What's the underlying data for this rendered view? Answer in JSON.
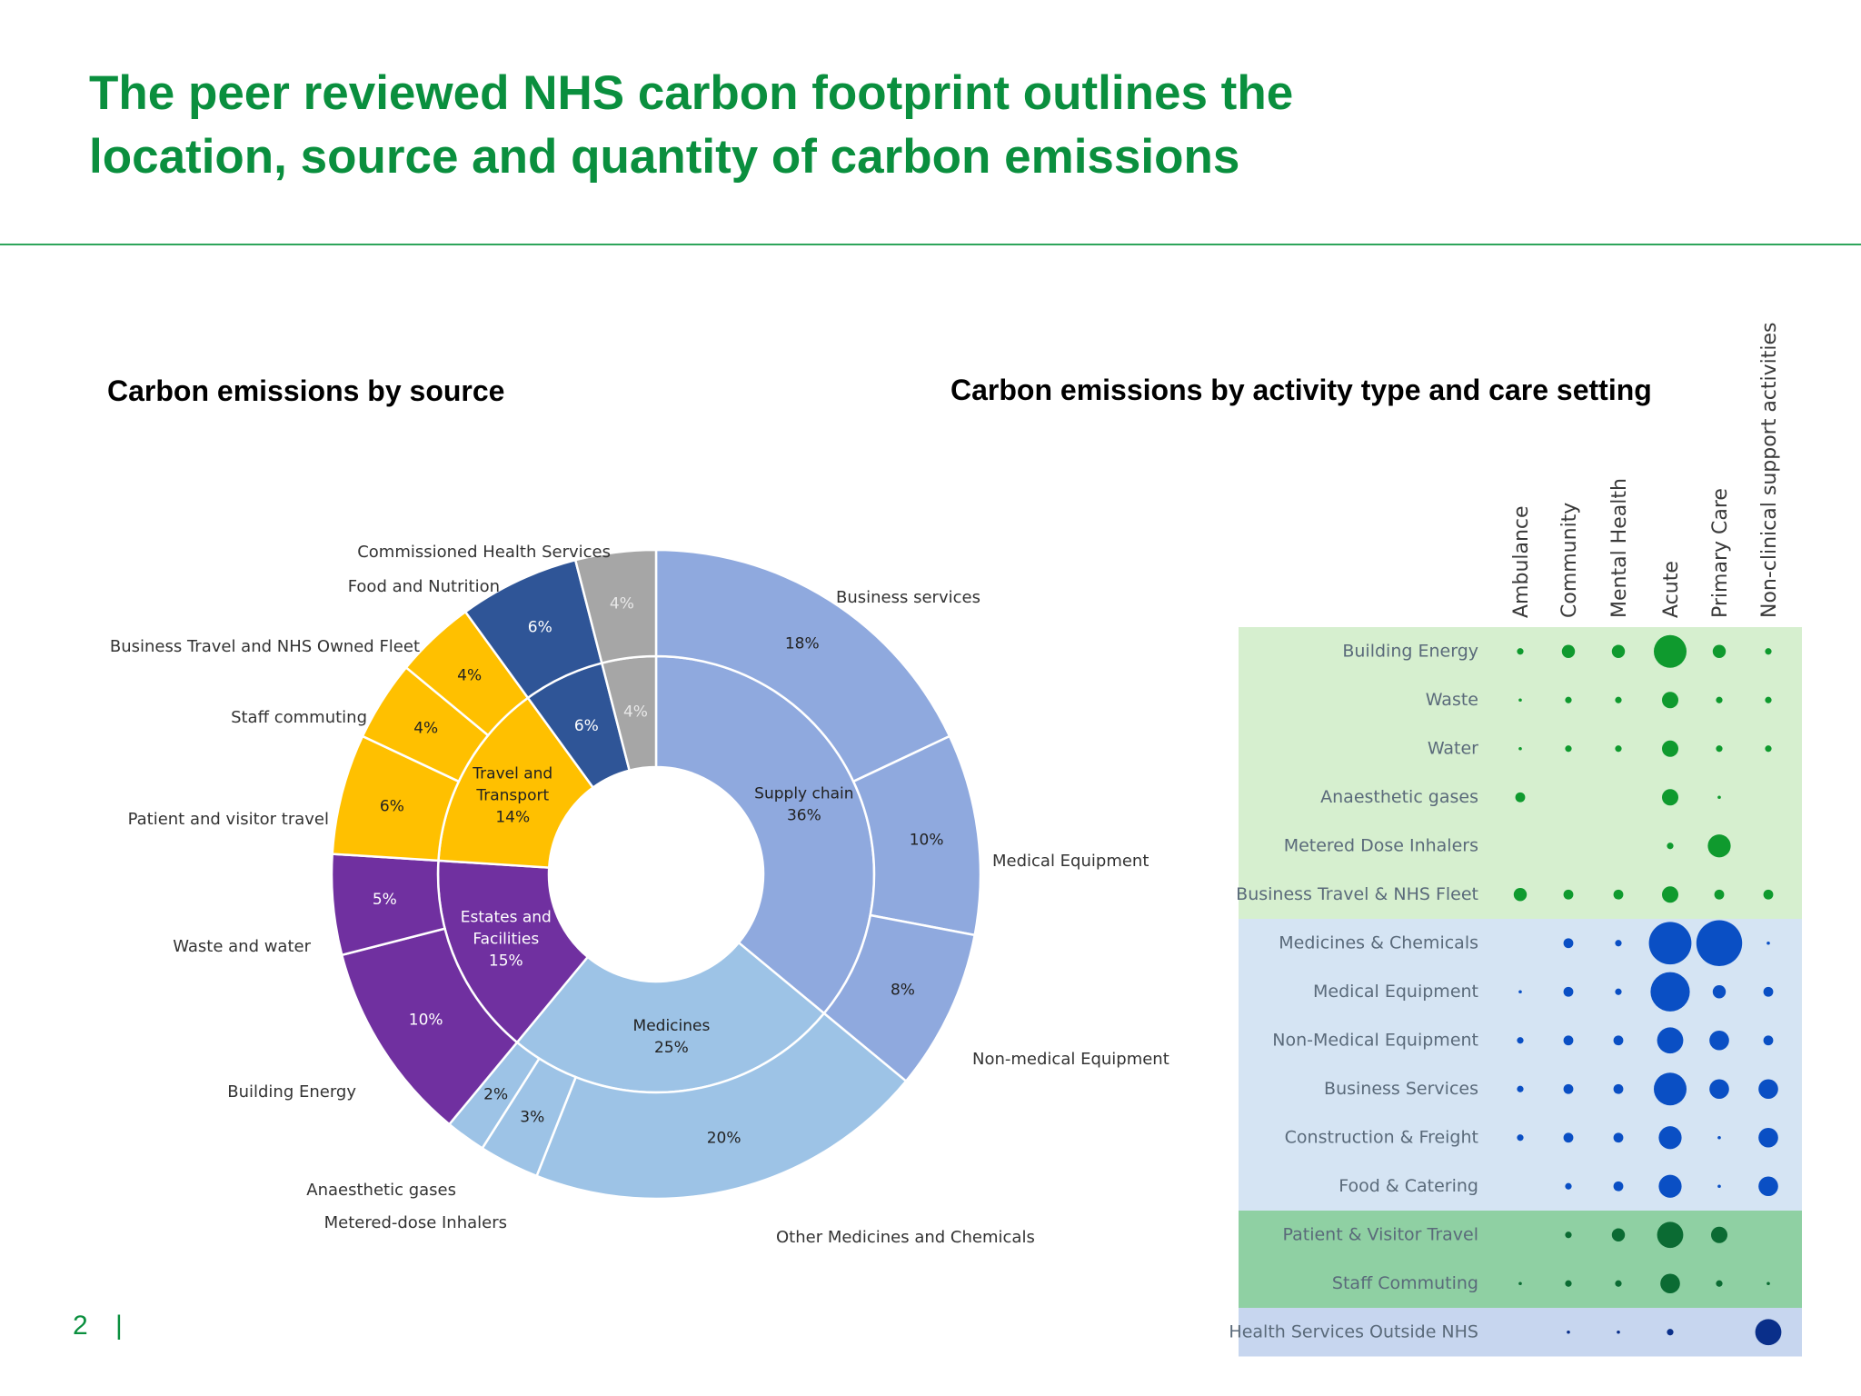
{
  "slide": {
    "title_line1": "The peer reviewed NHS carbon footprint outlines the",
    "title_line2": "location, source and quantity of carbon emissions",
    "page_number": "2",
    "page_separator": "|"
  },
  "left_heading": "Carbon emissions by source",
  "right_heading": "Carbon emissions by activity type and care setting",
  "colors": {
    "title_green": "#0a8f3e",
    "supply_chain_outer": "#8fa9de",
    "supply_chain_inner": "#8fa9de",
    "medicines": "#9dc3e6",
    "estates": "#7030a0",
    "travel": "#ffc000",
    "commissioned": "#2f5597",
    "food": "#a6a6a6",
    "band_green_light": "#d6efcf",
    "band_blue_light": "#d5e4f3",
    "band_green_dark": "#8fd0a3",
    "band_blue_mid": "#c7d6ef",
    "dot_green": "#0f9a2e",
    "dot_blue": "#0a4fc4",
    "dot_dark_green": "#0b6b33",
    "dot_navy": "#0a2f8a"
  },
  "chart_data": [
    {
      "type": "pie",
      "subtype": "donut-two-level",
      "title": "Carbon emissions by source",
      "unit": "%",
      "inner": [
        {
          "name": "Supply chain",
          "value": 36,
          "label": "36%",
          "color": "#8fa9de"
        },
        {
          "name": "Medicines",
          "value": 25,
          "label": "25%",
          "color": "#9dc3e6"
        },
        {
          "name": "Estates and Facilities",
          "value": 15,
          "label": "15%",
          "color": "#7030a0"
        },
        {
          "name": "Travel and Transport",
          "value": 14,
          "label": "14%",
          "color": "#ffc000"
        },
        {
          "name": "",
          "value": 6,
          "label": "6%",
          "color": "#2f5597"
        },
        {
          "name": "",
          "value": 4,
          "label": "4%",
          "color": "#a6a6a6"
        }
      ],
      "outer": [
        {
          "name": "Business services",
          "value": 18,
          "label": "18%",
          "color": "#8fa9de"
        },
        {
          "name": "Medical Equipment",
          "value": 10,
          "label": "10%",
          "color": "#8fa9de"
        },
        {
          "name": "Non-medical Equipment",
          "value": 8,
          "label": "8%",
          "color": "#8fa9de"
        },
        {
          "name": "Other Medicines and Chemicals",
          "value": 20,
          "label": "20%",
          "color": "#9dc3e6"
        },
        {
          "name": "Metered-dose Inhalers",
          "value": 3,
          "label": "3%",
          "color": "#9dc3e6"
        },
        {
          "name": "Anaesthetic gases",
          "value": 2,
          "label": "2%",
          "color": "#9dc3e6"
        },
        {
          "name": "Building Energy",
          "value": 10,
          "label": "10%",
          "color": "#7030a0"
        },
        {
          "name": "Waste and water",
          "value": 5,
          "label": "5%",
          "color": "#7030a0"
        },
        {
          "name": "Patient and visitor travel",
          "value": 6,
          "label": "6%",
          "color": "#ffc000"
        },
        {
          "name": "Staff commuting",
          "value": 4,
          "label": "4%",
          "color": "#ffc000"
        },
        {
          "name": "Business Travel and NHS Owned Fleet",
          "value": 4,
          "label": "4%",
          "color": "#ffc000"
        },
        {
          "name": "Food and Nutrition",
          "value": 6,
          "label": "6%",
          "color": "#2f5597"
        },
        {
          "name": "Commissioned Health Services",
          "value": 4,
          "label": "4%",
          "color": "#a6a6a6"
        }
      ]
    },
    {
      "type": "scatter",
      "subtype": "bubble-matrix",
      "title": "Carbon emissions by activity type and care setting",
      "columns": [
        "Ambulance",
        "Community",
        "Mental Health",
        "Acute",
        "Primary Care",
        "Non-clinical support activities"
      ],
      "rows": [
        {
          "label": "Building Energy",
          "sizes": [
            1,
            2,
            2,
            5,
            2,
            1
          ],
          "color": "#0f9a2e",
          "band": "green_light"
        },
        {
          "label": "Waste",
          "sizes": [
            0.5,
            1,
            1,
            2.5,
            1,
            1
          ],
          "color": "#0f9a2e",
          "band": "green_light"
        },
        {
          "label": "Water",
          "sizes": [
            0.5,
            1,
            1,
            2.5,
            1,
            1
          ],
          "color": "#0f9a2e",
          "band": "green_light"
        },
        {
          "label": "Anaesthetic gases",
          "sizes": [
            1.5,
            0,
            0,
            2.5,
            0.5,
            0
          ],
          "color": "#0f9a2e",
          "band": "green_light"
        },
        {
          "label": "Metered Dose Inhalers",
          "sizes": [
            0,
            0,
            0,
            1,
            3.5,
            0
          ],
          "color": "#0f9a2e",
          "band": "green_light"
        },
        {
          "label": "Business Travel & NHS Fleet",
          "sizes": [
            2,
            1.5,
            1.5,
            2.5,
            1.5,
            1.5
          ],
          "color": "#0f9a2e",
          "band": "green_light"
        },
        {
          "label": "Medicines & Chemicals",
          "sizes": [
            0,
            1.5,
            1,
            6.5,
            7,
            0.5
          ],
          "color": "#0a4fc4",
          "band": "blue_light"
        },
        {
          "label": "Medical Equipment",
          "sizes": [
            0.5,
            1.5,
            1,
            6,
            2,
            1.5
          ],
          "color": "#0a4fc4",
          "band": "blue_light"
        },
        {
          "label": "Non-Medical Equipment",
          "sizes": [
            1,
            1.5,
            1.5,
            4,
            3,
            1.5
          ],
          "color": "#0a4fc4",
          "band": "blue_light"
        },
        {
          "label": "Business Services",
          "sizes": [
            1,
            1.5,
            1.5,
            5,
            3,
            3
          ],
          "color": "#0a4fc4",
          "band": "blue_light"
        },
        {
          "label": "Construction & Freight",
          "sizes": [
            1,
            1.5,
            1.5,
            3.5,
            0.5,
            3
          ],
          "color": "#0a4fc4",
          "band": "blue_light"
        },
        {
          "label": "Food & Catering",
          "sizes": [
            0,
            1,
            1.5,
            3.5,
            0.5,
            3
          ],
          "color": "#0a4fc4",
          "band": "blue_light"
        },
        {
          "label": "Patient & Visitor Travel",
          "sizes": [
            0,
            1,
            2,
            4,
            2.5,
            0
          ],
          "color": "#0b6b33",
          "band": "green_dark"
        },
        {
          "label": "Staff Commuting",
          "sizes": [
            0.5,
            1,
            1,
            3,
            1,
            0.5
          ],
          "color": "#0b6b33",
          "band": "green_dark"
        },
        {
          "label": "Health Services Outside NHS",
          "sizes": [
            0,
            0.5,
            0.5,
            1,
            0,
            4
          ],
          "color": "#0a2f8a",
          "band": "blue_mid"
        }
      ]
    }
  ]
}
